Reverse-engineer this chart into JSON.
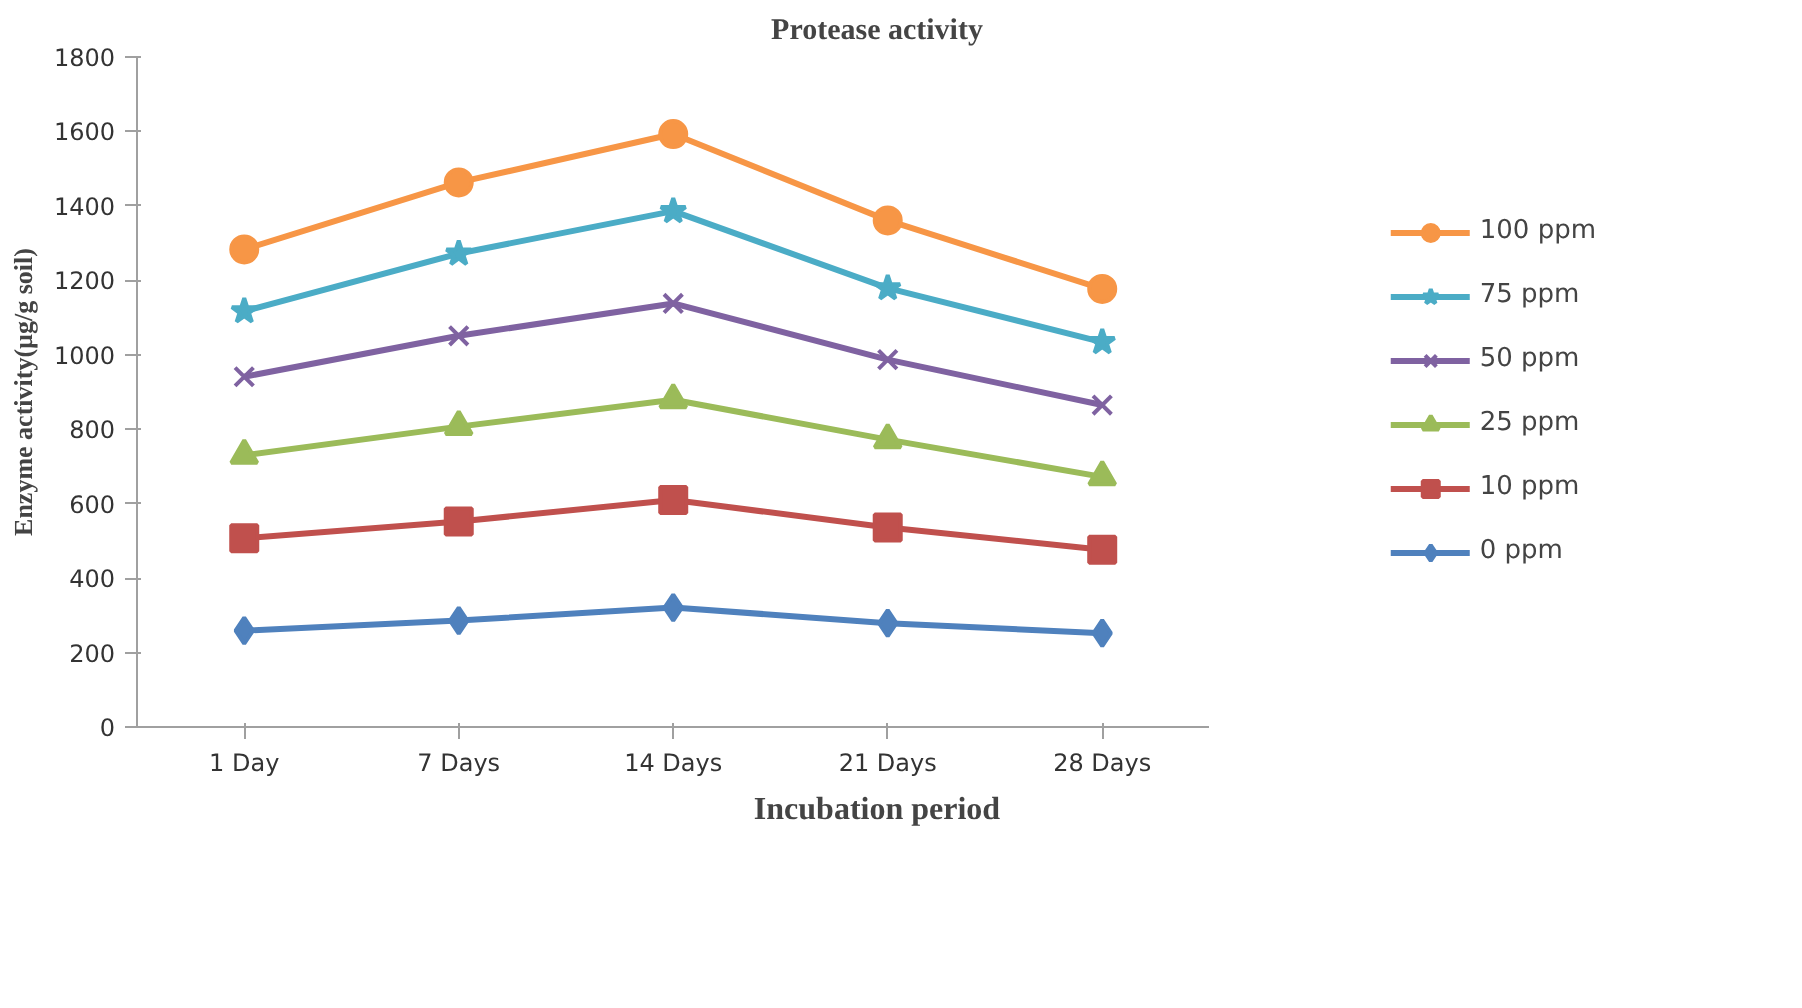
{
  "chart_data": {
    "type": "line",
    "title": "Protease activity",
    "xlabel": "Incubation period",
    "ylabel": "Enzyme activity(µg/g soil)",
    "categories": [
      "1 Day",
      "7 Days",
      "14 Days",
      "21 Days",
      "28 Days"
    ],
    "ylim": [
      0,
      1800
    ],
    "yticks": [
      0,
      200,
      400,
      600,
      800,
      1000,
      1200,
      1400,
      1600,
      1800
    ],
    "grid": false,
    "legend": "right",
    "series": [
      {
        "name": "100 ppm",
        "color": "#f79646",
        "marker": "circle",
        "values": [
          1283,
          1463,
          1593,
          1361,
          1177
        ]
      },
      {
        "name": "75 ppm",
        "color": "#4bacc6",
        "marker": "star",
        "values": [
          1117,
          1272,
          1386,
          1179,
          1034
        ]
      },
      {
        "name": "50 ppm",
        "color": "#7f62a1",
        "marker": "cross",
        "values": [
          941,
          1051,
          1138,
          987,
          865
        ]
      },
      {
        "name": "25 ppm",
        "color": "#9bbb59",
        "marker": "triangle",
        "values": [
          730,
          807,
          879,
          772,
          672
        ]
      },
      {
        "name": "10 ppm",
        "color": "#c0504d",
        "marker": "square",
        "values": [
          507,
          552,
          610,
          536,
          476
        ]
      },
      {
        "name": "0 ppm",
        "color": "#4f81bd",
        "marker": "diamond",
        "values": [
          259,
          286,
          321,
          279,
          252
        ]
      }
    ]
  }
}
